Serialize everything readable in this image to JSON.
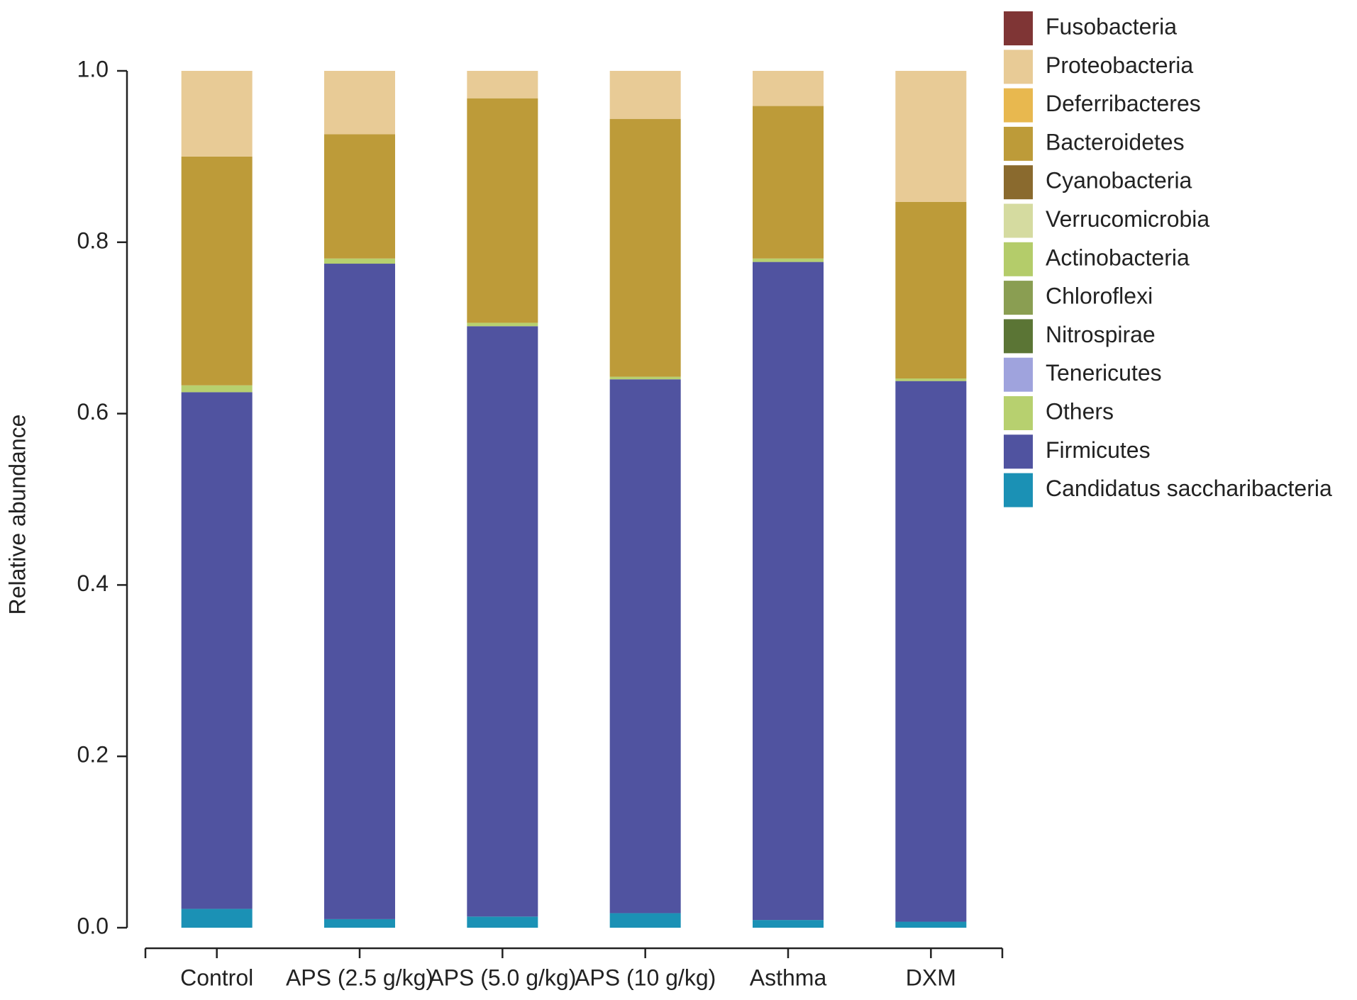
{
  "chart_data": {
    "type": "stacked_bar",
    "y_label": "Relative abundance",
    "categories": [
      "Control",
      "APS (2.5 g/kg)",
      "APS (5.0 g/kg)",
      "APS (10 g/kg)",
      "Asthma",
      "DXM"
    ],
    "ylim": [
      0,
      1
    ],
    "yticks": [
      {
        "value": 0,
        "label": "0.0"
      },
      0.2,
      0.4,
      0.6,
      0.8,
      {
        "value": 1,
        "label": "1.0"
      }
    ],
    "series": [
      {
        "name": "Fusobacteria",
        "color": "#7f3535",
        "values": [
          0,
          0,
          0,
          0,
          0,
          0
        ]
      },
      {
        "name": "Proteobacteria",
        "color": "#e8cb96",
        "values": [
          0.1,
          0.074,
          0.032,
          0.056,
          0.041,
          0.153
        ]
      },
      {
        "name": "Deferribacteres",
        "color": "#e8b84f",
        "values": [
          0,
          0,
          0,
          0,
          0,
          0
        ]
      },
      {
        "name": "Bacteroidetes",
        "color": "#bd9b39",
        "values": [
          0.267,
          0.145,
          0.262,
          0.301,
          0.178,
          0.206
        ]
      },
      {
        "name": "Cyanobacteria",
        "color": "#8a6a2e",
        "values": [
          0,
          0,
          0,
          0,
          0,
          0
        ]
      },
      {
        "name": "Verrucomicrobia",
        "color": "#d5dba0",
        "values": [
          0,
          0,
          0,
          0,
          0,
          0
        ]
      },
      {
        "name": "Actinobacteria",
        "color": "#b4cc6a",
        "values": [
          0,
          0,
          0,
          0,
          0,
          0
        ]
      },
      {
        "name": "Chloroflexi",
        "color": "#8a9e52",
        "values": [
          0,
          0,
          0,
          0,
          0,
          0
        ]
      },
      {
        "name": "Nitrospirae",
        "color": "#5b7535",
        "values": [
          0,
          0,
          0,
          0,
          0,
          0
        ]
      },
      {
        "name": "Tenericutes",
        "color": "#9fa3dd",
        "values": [
          0,
          0,
          0,
          0,
          0,
          0
        ]
      },
      {
        "name": "Others",
        "color": "#b7d06f",
        "values": [
          0.008,
          0.006,
          0.004,
          0.003,
          0.004,
          0.003
        ]
      },
      {
        "name": "Firmicutes",
        "color": "#5053a0",
        "values": [
          0.603,
          0.765,
          0.689,
          0.623,
          0.768,
          0.631
        ]
      },
      {
        "name": "Candidatus saccharibacteria",
        "color": "#1b91b5",
        "values": [
          0.022,
          0.01,
          0.013,
          0.017,
          0.009,
          0.007
        ]
      }
    ]
  }
}
